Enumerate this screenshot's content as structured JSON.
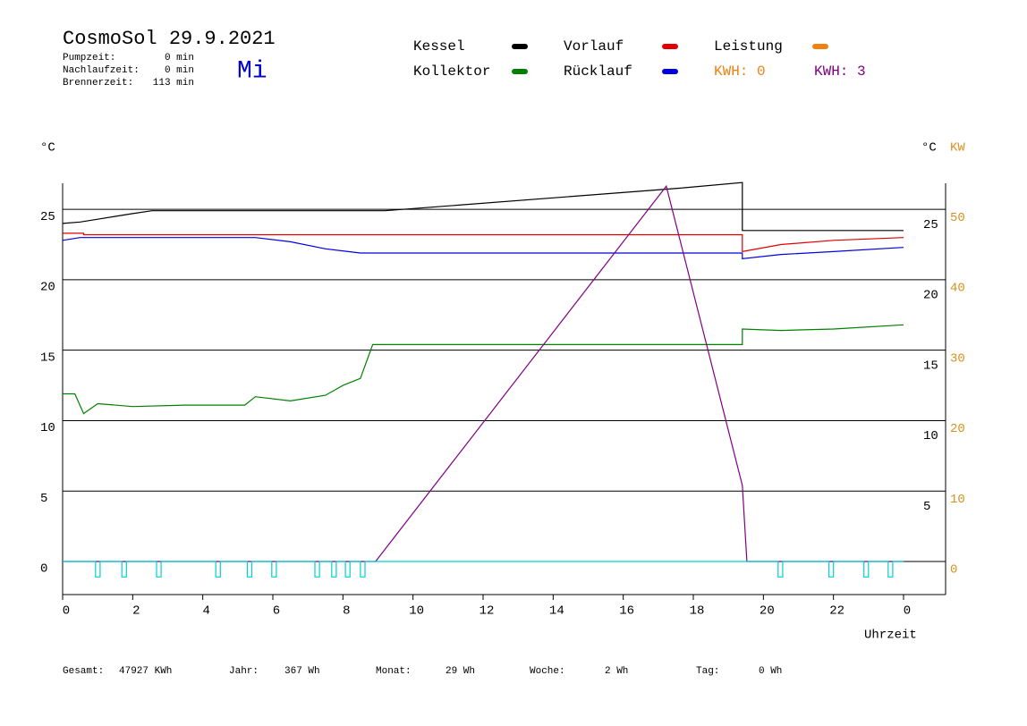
{
  "chart_data": {
    "type": "line",
    "title": "CosmoSol 29.9.2021",
    "weekday": "Mi",
    "info": [
      {
        "label": "Pumpzeit:",
        "value": "0 min"
      },
      {
        "label": "Nachlaufzeit:",
        "value": "0 min"
      },
      {
        "label": "Brennerzeit:",
        "value": "113 min"
      }
    ],
    "y_unit": "°C",
    "y_unit_right": "°C",
    "y2_unit": "KW",
    "x_label": "Uhrzeit",
    "xlim": [
      0,
      25.2
    ],
    "xticks": [
      0,
      2,
      4,
      6,
      8,
      10,
      12,
      14,
      16,
      18,
      20,
      22,
      {
        "value": 24,
        "label": "0"
      }
    ],
    "ylim": [
      -2.35,
      26.85
    ],
    "yticks": [
      0,
      5,
      10,
      15,
      20,
      25
    ],
    "yticks_right": [
      5,
      10,
      15,
      20,
      25
    ],
    "y2lim": [
      -4.7,
      53.7
    ],
    "y2ticks": [
      0,
      10,
      20,
      30,
      40,
      50
    ],
    "grid": true,
    "series": [
      {
        "name": "Kessel",
        "color": "#000000",
        "x": [
          0,
          0.5,
          1,
          1.5,
          2,
          2.55,
          9.2,
          17.6,
          19.4,
          19.4,
          24
        ],
        "values": [
          24.0,
          24.1,
          24.3,
          24.5,
          24.7,
          24.9,
          24.9,
          26.5,
          26.9,
          23.5,
          23.5
        ]
      },
      {
        "name": "Vorlauf",
        "color": "#e00000",
        "x": [
          0,
          0.6,
          0.6,
          19.4,
          19.4,
          20.5,
          22,
          24
        ],
        "values": [
          23.3,
          23.3,
          23.2,
          23.2,
          22.0,
          22.5,
          22.8,
          23.0
        ]
      },
      {
        "name": "Leistung",
        "color": "#f08010",
        "x": [],
        "values": []
      },
      {
        "name": "Kollektor",
        "color": "#008000",
        "x": [
          0,
          0.35,
          0.6,
          1.0,
          2.0,
          3.5,
          5.2,
          5.5,
          6.5,
          7.5,
          8.0,
          8.5,
          8.85,
          19.4,
          19.4,
          20.5,
          22,
          24
        ],
        "values": [
          11.9,
          11.9,
          10.5,
          11.2,
          11.0,
          11.1,
          11.1,
          11.7,
          11.4,
          11.8,
          12.5,
          13.0,
          15.4,
          15.4,
          16.5,
          16.4,
          16.5,
          16.8
        ]
      },
      {
        "name": "Rücklauf",
        "color": "#0000e0",
        "x": [
          0,
          0.5,
          5.5,
          6.5,
          7.5,
          8.5,
          19.4,
          19.4,
          20.5,
          22,
          24
        ],
        "values": [
          22.8,
          23.0,
          23.0,
          22.7,
          22.2,
          21.9,
          21.9,
          21.5,
          21.8,
          22.0,
          22.3
        ]
      },
      {
        "color": "#800080",
        "axis": "y2",
        "x": [
          0,
          8.93,
          17.23,
          19.4,
          19.53,
          24
        ],
        "values": [
          0,
          0,
          53.3,
          10.8,
          0,
          0
        ]
      },
      {
        "color": "#00d0d0",
        "x": [
          0,
          0.94,
          0.94,
          1.07,
          1.07,
          1.69,
          1.69,
          1.82,
          1.82,
          2.68,
          2.68,
          2.81,
          2.81,
          4.37,
          4.37,
          4.5,
          4.5,
          5.27,
          5.27,
          5.4,
          5.4,
          5.97,
          5.97,
          6.1,
          6.1,
          7.2,
          7.2,
          7.33,
          7.33,
          7.68,
          7.68,
          7.81,
          7.81,
          8.07,
          8.07,
          8.2,
          8.2,
          8.5,
          8.5,
          8.63,
          8.63,
          20.42,
          20.42,
          20.55,
          20.55,
          21.87,
          21.87,
          22.0,
          22.0,
          22.87,
          22.87,
          23.0,
          23.0,
          23.56,
          23.56,
          23.69,
          23.69,
          24
        ],
        "values": [
          0,
          0,
          -1.1,
          -1.1,
          0,
          0,
          -1.1,
          -1.1,
          0,
          0,
          -1.1,
          -1.1,
          0,
          0,
          -1.1,
          -1.1,
          0,
          0,
          -1.1,
          -1.1,
          0,
          0,
          -1.1,
          -1.1,
          0,
          0,
          -1.1,
          -1.1,
          0,
          0,
          -1.1,
          -1.1,
          0,
          0,
          -1.1,
          -1.1,
          0,
          0,
          -1.1,
          -1.1,
          0,
          0,
          -1.1,
          -1.1,
          0,
          0,
          -1.1,
          -1.1,
          0,
          0,
          -1.1,
          -1.1,
          0,
          0,
          -1.1,
          -1.1,
          0,
          0
        ]
      }
    ],
    "kwh_labels": [
      {
        "text": "KWH: 0",
        "color": "#f08010"
      },
      {
        "text": "KWH: 3",
        "color": "#800080"
      }
    ],
    "footer": [
      {
        "label": "Gesamt:",
        "value": "47927 KWh"
      },
      {
        "label": "Jahr:",
        "value": "367 Wh"
      },
      {
        "label": "Monat:",
        "value": "29 Wh"
      },
      {
        "label": "Woche:",
        "value": "2 Wh"
      },
      {
        "label": "Tag:",
        "value": "0 Wh"
      }
    ]
  }
}
